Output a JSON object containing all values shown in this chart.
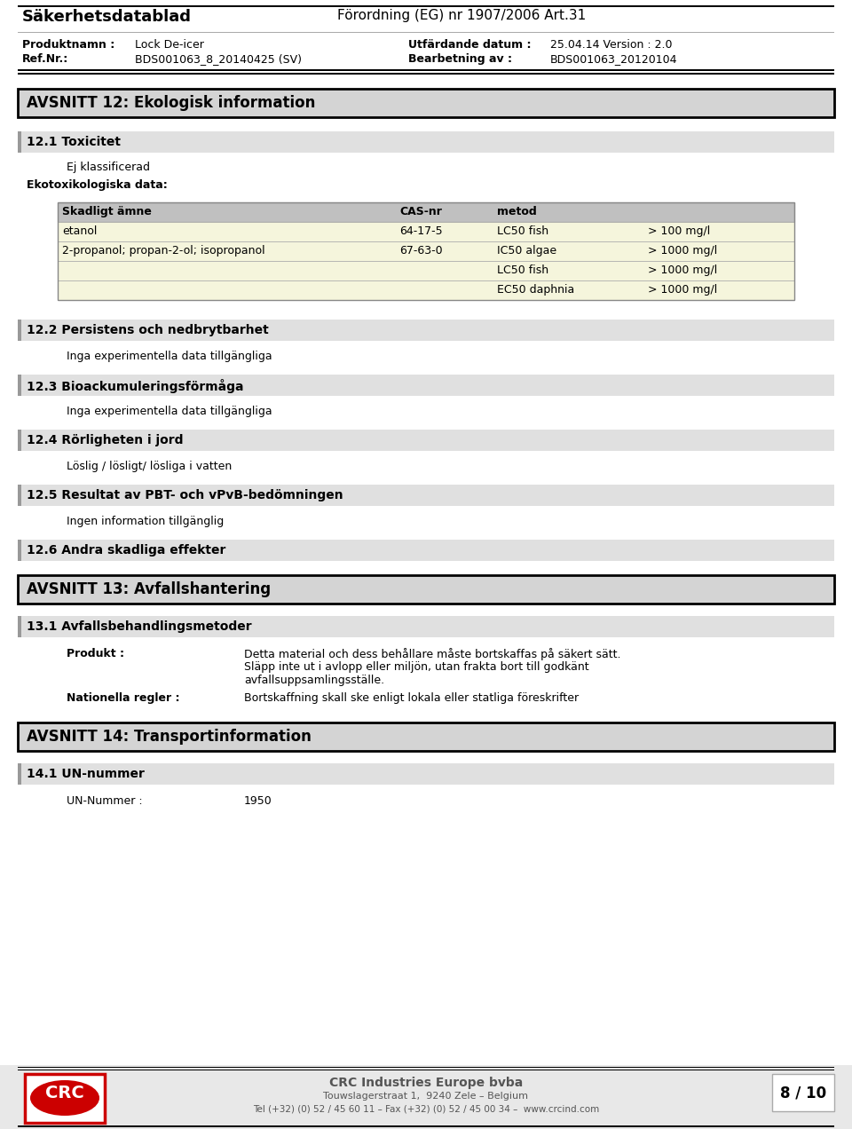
{
  "page_bg": "#ffffff",
  "section_bg": "#d4d4d4",
  "section_border": "#000000",
  "subsection_bg": "#e0e0e0",
  "table_header_bg": "#c0c0c0",
  "table_row_bg": "#f5f5dc",
  "title_left": "Säkerhetsdatablad",
  "title_right": "Förordning (EG) nr 1907/2006 Art.31",
  "prod_label": "Produktnamn :",
  "prod_value": "Lock De-icer",
  "ref_label": "Ref.Nr.:",
  "ref_value": "BDS001063_8_20140425 (SV)",
  "date_label": "Utfärdande datum :",
  "date_value": "25.04.14 Version : 2.0",
  "proc_label": "Bearbetning av :",
  "proc_value": "BDS001063_20120104",
  "section12_title": "AVSNITT 12: Ekologisk information",
  "s12_1_title": "12.1 Toxicitet",
  "s12_1_text1": "Ej klassificerad",
  "s12_1_text2": "Ekotoxikologiska data:",
  "table_headers": [
    "Skadligt ämne",
    "CAS-nr",
    "metod",
    ""
  ],
  "table_rows": [
    [
      "etanol",
      "64-17-5",
      "LC50 fish",
      "> 100 mg/l"
    ],
    [
      "2-propanol; propan-2-ol; isopropanol",
      "67-63-0",
      "IC50 algae",
      "> 1000 mg/l"
    ],
    [
      "",
      "",
      "LC50 fish",
      "> 1000 mg/l"
    ],
    [
      "",
      "",
      "EC50 daphnia",
      "> 1000 mg/l"
    ]
  ],
  "s12_2_title": "12.2 Persistens och nedbrytbarhet",
  "s12_2_text": "Inga experimentella data tillgängliga",
  "s12_3_title": "12.3 Bioackumuleringsförmåga",
  "s12_3_text": "Inga experimentella data tillgängliga",
  "s12_4_title": "12.4 Rörligheten i jord",
  "s12_4_text": "Löslig / lösligt/ lösliga i vatten",
  "s12_5_title": "12.5 Resultat av PBT- och vPvB-bedömningen",
  "s12_5_text": "Ingen information tillgänglig",
  "s12_6_title": "12.6 Andra skadliga effekter",
  "s13_title": "AVSNITT 13: Avfallshantering",
  "s13_1_title": "13.1 Avfallsbehandlingsmetoder",
  "s13_prod_label": "Produkt :",
  "s13_prod_text1": "Detta material och dess behållare måste bortskaffas på säkert sätt.",
  "s13_prod_text2": "Släpp inte ut i avlopp eller miljön, utan frakta bort till godkänt",
  "s13_prod_text3": "avfallsuppsamlingsställe.",
  "s13_nat_label": "Nationella regler :",
  "s13_nat_text": "Bortskaffning skall ske enligt lokala eller statliga föreskrifter",
  "s14_title": "AVSNITT 14: Transportinformation",
  "s14_1_title": "14.1 UN-nummer",
  "s14_1_label": "UN-Nummer :",
  "s14_1_value": "1950",
  "footer_company": "CRC Industries Europe bvba",
  "footer_address": "Touwslagerstraat 1,  9240 Zele – Belgium",
  "footer_tel": "Tel (+32) (0) 52 / 45 60 11 – Fax (+32) (0) 52 / 45 00 34 –  www.crcind.com",
  "footer_page": "8 / 10"
}
